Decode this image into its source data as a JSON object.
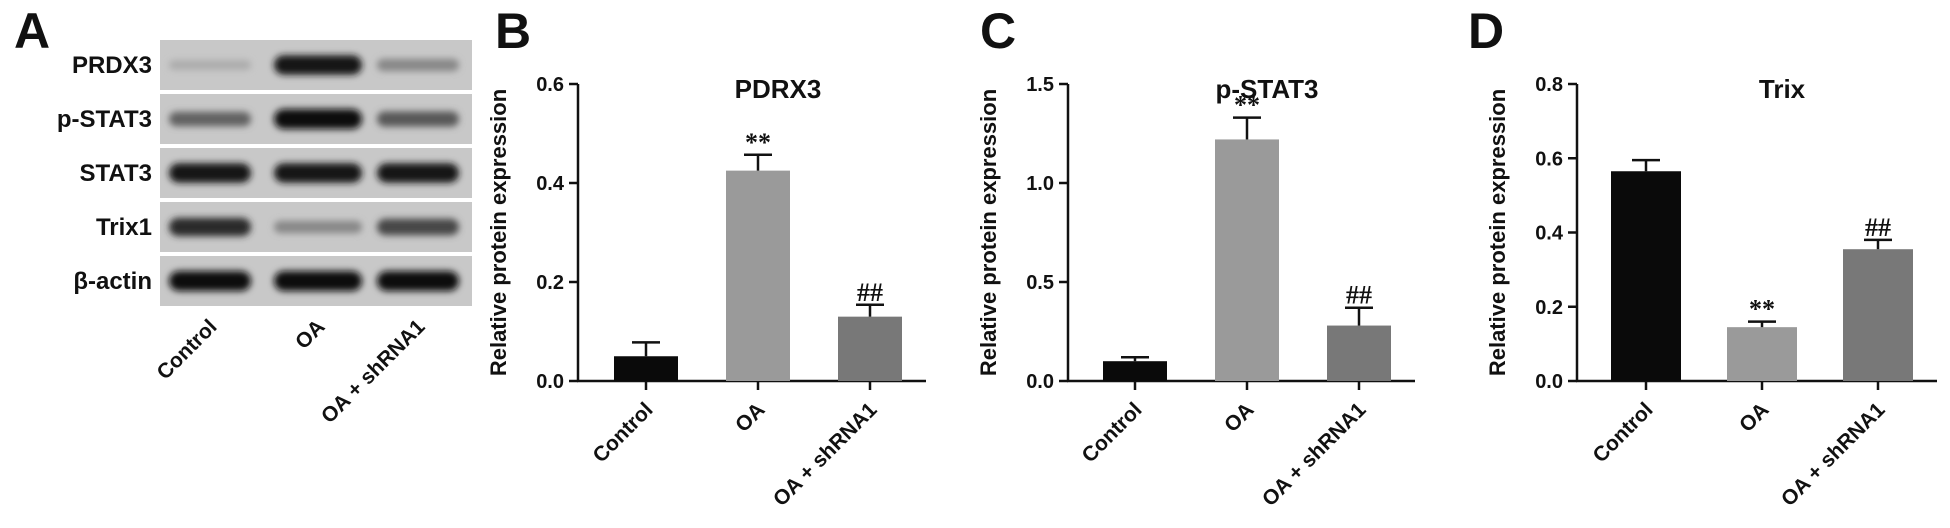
{
  "panels": {
    "a": "A",
    "b": "B",
    "c": "C",
    "d": "D"
  },
  "western_blot": {
    "proteins": [
      "PRDX3",
      "p-STAT3",
      "STAT3",
      "Trix1",
      "β-actin"
    ],
    "lanes": [
      "Control",
      "OA",
      "OA + shRNA1"
    ],
    "band_intensity": [
      [
        0.15,
        0.95,
        0.35
      ],
      [
        0.55,
        1.0,
        0.6
      ],
      [
        0.95,
        0.95,
        0.95
      ],
      [
        0.85,
        0.35,
        0.7
      ],
      [
        1.0,
        1.0,
        1.0
      ]
    ]
  },
  "chart_data": [
    {
      "type": "bar",
      "title": "PDRX3",
      "ylabel": "Relative protein expression",
      "categories": [
        "Control",
        "OA",
        "OA + shRNA1"
      ],
      "values": [
        0.05,
        0.425,
        0.13
      ],
      "errors": [
        0.028,
        0.032,
        0.024
      ],
      "significance": [
        "",
        "**",
        "##"
      ],
      "ylim": [
        0,
        0.6
      ],
      "yticks": [
        "0.0",
        "0.2",
        "0.4",
        "0.6"
      ],
      "bar_colors": [
        "#0a0a0a",
        "#9a9a9a",
        "#787878"
      ]
    },
    {
      "type": "bar",
      "title": "p-STAT3",
      "ylabel": "Relative protein expression",
      "categories": [
        "Control",
        "OA",
        "OA + shRNA1"
      ],
      "values": [
        0.1,
        1.22,
        0.28
      ],
      "errors": [
        0.02,
        0.11,
        0.09
      ],
      "significance": [
        "",
        "**",
        "##"
      ],
      "ylim": [
        0,
        1.5
      ],
      "yticks": [
        "0.0",
        "0.5",
        "1.0",
        "1.5"
      ],
      "bar_colors": [
        "#0a0a0a",
        "#9a9a9a",
        "#787878"
      ]
    },
    {
      "type": "bar",
      "title": "Trix",
      "ylabel": "Relative protein expression",
      "categories": [
        "Control",
        "OA",
        "OA + shRNA1"
      ],
      "values": [
        0.565,
        0.145,
        0.355
      ],
      "errors": [
        0.03,
        0.015,
        0.025
      ],
      "significance": [
        "",
        "**",
        "##"
      ],
      "ylim": [
        0,
        0.8
      ],
      "yticks": [
        "0.0",
        "0.2",
        "0.4",
        "0.6",
        "0.8"
      ],
      "bar_colors": [
        "#0a0a0a",
        "#9a9a9a",
        "#787878"
      ]
    }
  ]
}
